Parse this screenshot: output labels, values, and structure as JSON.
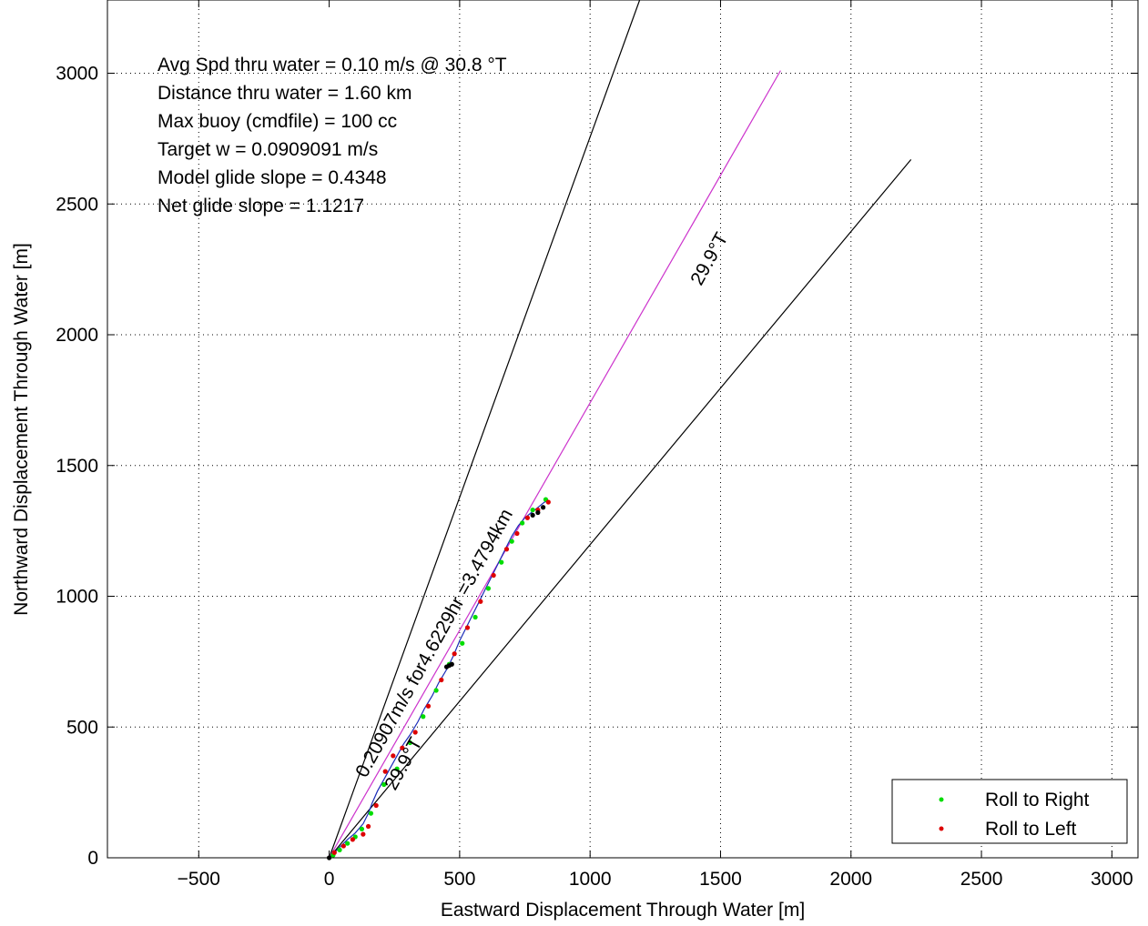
{
  "chart_data": {
    "type": "scatter",
    "xlabel": "Eastward Displacement Through Water [m]",
    "ylabel": "Northward Displacement Through Water [m]",
    "xlim": [
      -850,
      3100
    ],
    "ylim": [
      0,
      3280
    ],
    "xticks": [
      -500,
      0,
      500,
      1000,
      1500,
      2000,
      2500,
      3000
    ],
    "xtick_labels": [
      "−500",
      "0",
      "500",
      "1000",
      "1500",
      "2000",
      "2500",
      "3000"
    ],
    "yticks": [
      0,
      500,
      1000,
      1500,
      2000,
      2500,
      3000
    ],
    "ytick_labels": [
      "0",
      "500",
      "1000",
      "1500",
      "2000",
      "2500",
      "3000"
    ],
    "grid": true,
    "info_lines": [
      "Avg Spd thru water =  0.10 m/s @  30.8    °T",
      "Distance thru water =  1.60 km",
      "Max buoy (cmdfile) = 100 cc",
      "Target w = 0.0909091 m/s",
      "Model glide slope = 0.4348",
      "Net glide slope = 1.1217"
    ],
    "annotations": {
      "heading_upper": "29.9°T",
      "heading_lower": "29.9°T",
      "speed_line": "0.20907m/s for4.6229hr =3.4794km"
    },
    "lines": [
      {
        "x": [
          0,
          1190
        ],
        "y": [
          0,
          3280
        ],
        "color": "#000000"
      },
      {
        "x": [
          0,
          1730
        ],
        "y": [
          0,
          3010
        ],
        "color": "#cc33cc"
      },
      {
        "x": [
          0,
          2230
        ],
        "y": [
          0,
          2670
        ],
        "color": "#000000"
      }
    ],
    "track": {
      "x": [
        0,
        20,
        45,
        70,
        100,
        130,
        150,
        165,
        185,
        210,
        235,
        260,
        285,
        310,
        340,
        365,
        395,
        420,
        450,
        475,
        500,
        525,
        550,
        575,
        600,
        625,
        650,
        675,
        700,
        725,
        750,
        775,
        800,
        825,
        840
      ],
      "y": [
        0,
        20,
        45,
        70,
        95,
        130,
        170,
        210,
        255,
        300,
        345,
        390,
        435,
        470,
        520,
        570,
        620,
        670,
        720,
        770,
        830,
        880,
        930,
        980,
        1030,
        1080,
        1130,
        1180,
        1230,
        1270,
        1300,
        1320,
        1340,
        1360,
        1365
      ],
      "color": "#1a2bb8"
    },
    "series": [
      {
        "name": "Roll to Right",
        "color": "#00dd00",
        "x": [
          15,
          40,
          70,
          100,
          125,
          160,
          210,
          260,
          310,
          360,
          410,
          460,
          510,
          560,
          610,
          660,
          700,
          740,
          780,
          830
        ],
        "y": [
          10,
          30,
          55,
          80,
          110,
          170,
          280,
          340,
          440,
          540,
          640,
          740,
          820,
          920,
          1030,
          1130,
          1210,
          1280,
          1330,
          1370
        ]
      },
      {
        "name": "Roll to Left",
        "color": "#dd0000",
        "x": [
          20,
          55,
          90,
          130,
          150,
          180,
          215,
          245,
          280,
          330,
          380,
          430,
          480,
          530,
          580,
          630,
          680,
          720,
          760,
          800,
          840
        ],
        "y": [
          20,
          45,
          70,
          90,
          120,
          200,
          330,
          390,
          420,
          480,
          580,
          680,
          780,
          880,
          980,
          1080,
          1180,
          1240,
          1300,
          1330,
          1360
        ]
      }
    ],
    "black_points": {
      "color": "#000000",
      "x": [
        0,
        450,
        460,
        470,
        780,
        800,
        820
      ],
      "y": [
        0,
        730,
        735,
        740,
        1310,
        1320,
        1340
      ]
    },
    "legend": {
      "placement": "bottom-right",
      "entries": [
        "Roll to Right",
        "Roll to Left"
      ]
    }
  }
}
